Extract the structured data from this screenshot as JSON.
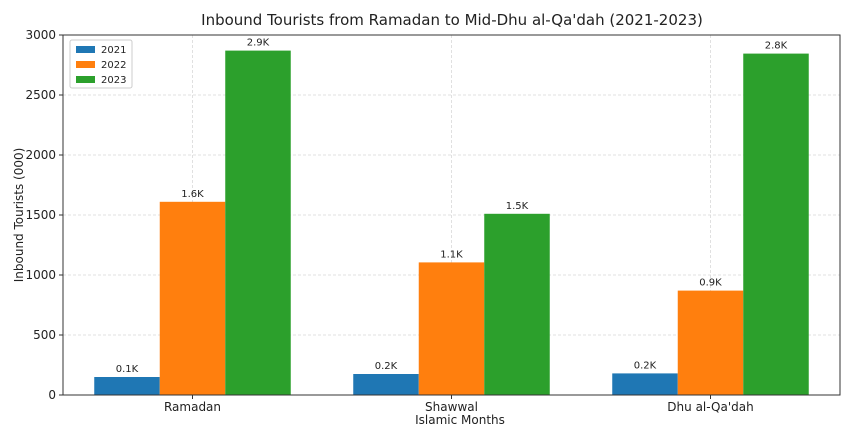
{
  "chart_data": {
    "type": "bar",
    "title": "Inbound Tourists from Ramadan to Mid-Dhu al-Qa'dah (2021-2023)",
    "xlabel": "Islamic Months",
    "ylabel": "Inbound Tourists (000)",
    "categories": [
      "Ramadan",
      "Shawwal",
      "Dhu al-Qa'dah"
    ],
    "ylim": [
      0,
      3000
    ],
    "yticks": [
      0,
      500,
      1000,
      1500,
      2000,
      2500,
      3000
    ],
    "grid": true,
    "legend_position": "top-left",
    "series": [
      {
        "name": "2021",
        "color": "#1f77b4",
        "values": [
          150,
          175,
          180
        ],
        "labels": [
          "0.1K",
          "0.2K",
          "0.2K"
        ]
      },
      {
        "name": "2022",
        "color": "#ff7f0e",
        "values": [
          1610,
          1105,
          870
        ],
        "labels": [
          "1.6K",
          "1.1K",
          "0.9K"
        ]
      },
      {
        "name": "2023",
        "color": "#2ca02c",
        "values": [
          2870,
          1510,
          2845
        ],
        "labels": [
          "2.9K",
          "1.5K",
          "2.8K"
        ]
      }
    ]
  }
}
